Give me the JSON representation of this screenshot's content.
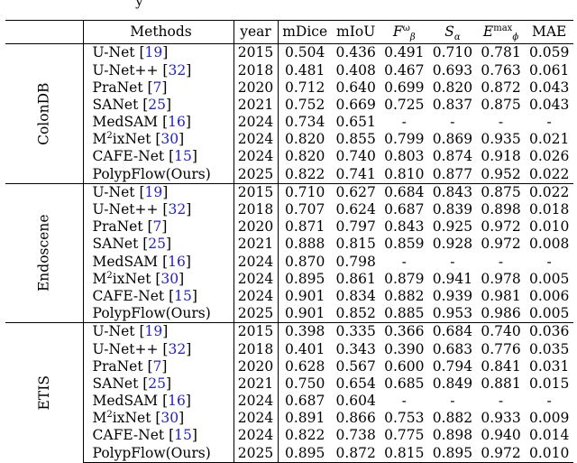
{
  "caption_fragment": "y",
  "headers": {
    "methods": "Methods",
    "year": "year",
    "mdice": "mDice",
    "miou": "mIoU",
    "fbeta": {
      "base": "F",
      "sup": "ω",
      "sub": "β"
    },
    "salpha": {
      "base": "S",
      "sub": "α"
    },
    "ephi": {
      "base": "E",
      "sup": "max",
      "sub": "ϕ"
    },
    "mae": "MAE"
  },
  "groups": [
    {
      "dataset": "ColonDB",
      "rows": [
        {
          "method": "U-Net",
          "cite": "19",
          "year": "2015",
          "mdice": "0.504",
          "miou": "0.436",
          "fbeta": "0.491",
          "salpha": "0.710",
          "ephi": "0.781",
          "mae": "0.059"
        },
        {
          "method": "U-Net++",
          "cite": "32",
          "year": "2018",
          "mdice": "0.481",
          "miou": "0.408",
          "fbeta": "0.467",
          "salpha": "0.693",
          "ephi": "0.763",
          "mae": "0.061"
        },
        {
          "method": "PraNet",
          "cite": "7",
          "year": "2020",
          "mdice": "0.712",
          "miou": "0.640",
          "fbeta": "0.699",
          "salpha": "0.820",
          "ephi": "0.872",
          "mae": "0.043"
        },
        {
          "method": "SANet",
          "cite": "25",
          "year": "2021",
          "mdice": "0.752",
          "miou": "0.669",
          "fbeta": "0.725",
          "salpha": "0.837",
          "ephi": "0.875",
          "mae": "0.043"
        },
        {
          "method": "MedSAM",
          "cite": "16",
          "year": "2024",
          "mdice": "0.734",
          "miou": "0.651",
          "fbeta": "-",
          "salpha": "-",
          "ephi": "-",
          "mae": "-"
        },
        {
          "method": "M",
          "method_sup": "2",
          "method_rest": "ixNet",
          "cite": "30",
          "year": "2024",
          "mdice": "0.820",
          "miou": "0.855",
          "fbeta": "0.799",
          "salpha": "0.869",
          "ephi": "0.935",
          "mae": "0.021",
          "bold": [
            "miou",
            "mae"
          ]
        },
        {
          "method": "CAFE-Net",
          "cite": "15",
          "year": "2024",
          "mdice": "0.820",
          "miou": "0.740",
          "fbeta": "0.803",
          "salpha": "0.874",
          "ephi": "0.918",
          "mae": "0.026"
        },
        {
          "method": "PolypFlow(Ours)",
          "year": "2025",
          "mdice": "0.822",
          "miou": "0.741",
          "fbeta": "0.810",
          "salpha": "0.877",
          "ephi": "0.952",
          "mae": "0.022",
          "ours": true,
          "bold": [
            "mdice",
            "fbeta",
            "salpha",
            "ephi"
          ]
        }
      ]
    },
    {
      "dataset": "Endoscene",
      "rows": [
        {
          "method": "U-Net",
          "cite": "19",
          "year": "2015",
          "mdice": "0.710",
          "miou": "0.627",
          "fbeta": "0.684",
          "salpha": "0.843",
          "ephi": "0.875",
          "mae": "0.022"
        },
        {
          "method": "U-Net++",
          "cite": "32",
          "year": "2018",
          "mdice": "0.707",
          "miou": "0.624",
          "fbeta": "0.687",
          "salpha": "0.839",
          "ephi": "0.898",
          "mae": "0.018"
        },
        {
          "method": "PraNet",
          "cite": "7",
          "year": "2020",
          "mdice": "0.871",
          "miou": "0.797",
          "fbeta": "0.843",
          "salpha": "0.925",
          "ephi": "0.972",
          "mae": "0.010"
        },
        {
          "method": "SANet",
          "cite": "25",
          "year": "2021",
          "mdice": "0.888",
          "miou": "0.815",
          "fbeta": "0.859",
          "salpha": "0.928",
          "ephi": "0.972",
          "mae": "0.008"
        },
        {
          "method": "MedSAM",
          "cite": "16",
          "year": "2024",
          "mdice": "0.870",
          "miou": "0.798",
          "fbeta": "-",
          "salpha": "-",
          "ephi": "-",
          "mae": "-"
        },
        {
          "method": "M",
          "method_sup": "2",
          "method_rest": "ixNet",
          "cite": "30",
          "year": "2024",
          "mdice": "0.895",
          "miou": "0.861",
          "fbeta": "0.879",
          "salpha": "0.941",
          "ephi": "0.978",
          "mae": "0.005",
          "bold": [
            "miou",
            "mae"
          ]
        },
        {
          "method": "CAFE-Net",
          "cite": "15",
          "year": "2024",
          "mdice": "0.901",
          "miou": "0.834",
          "fbeta": "0.882",
          "salpha": "0.939",
          "ephi": "0.981",
          "mae": "0.006",
          "bold": [
            "mdice"
          ]
        },
        {
          "method": "PolypFlow(Ours)",
          "year": "2025",
          "mdice": "0.901",
          "miou": "0.852",
          "fbeta": "0.885",
          "salpha": "0.953",
          "ephi": "0.986",
          "mae": "0.005",
          "ours": true,
          "bold": [
            "mdice",
            "fbeta",
            "salpha",
            "ephi",
            "mae"
          ]
        }
      ]
    },
    {
      "dataset": "ETIS",
      "rows": [
        {
          "method": "U-Net",
          "cite": "19",
          "year": "2015",
          "mdice": "0.398",
          "miou": "0.335",
          "fbeta": "0.366",
          "salpha": "0.684",
          "ephi": "0.740",
          "mae": "0.036"
        },
        {
          "method": "U-Net++",
          "cite": "32",
          "year": "2018",
          "mdice": "0.401",
          "miou": "0.343",
          "fbeta": "0.390",
          "salpha": "0.683",
          "ephi": "0.776",
          "mae": "0.035"
        },
        {
          "method": "PraNet",
          "cite": "7",
          "year": "2020",
          "mdice": "0.628",
          "miou": "0.567",
          "fbeta": "0.600",
          "salpha": "0.794",
          "ephi": "0.841",
          "mae": "0.031"
        },
        {
          "method": "SANet",
          "cite": "25",
          "year": "2021",
          "mdice": "0.750",
          "miou": "0.654",
          "fbeta": "0.685",
          "salpha": "0.849",
          "ephi": "0.881",
          "mae": "0.015"
        },
        {
          "method": "MedSAM",
          "cite": "16",
          "year": "2024",
          "mdice": "0.687",
          "miou": "0.604",
          "fbeta": "-",
          "salpha": "-",
          "ephi": "-",
          "mae": "-"
        },
        {
          "method": "M",
          "method_sup": "2",
          "method_rest": "ixNet",
          "cite": "30",
          "year": "2024",
          "mdice": "0.891",
          "miou": "0.866",
          "fbeta": "0.753",
          "salpha": "0.882",
          "ephi": "0.933",
          "mae": "0.009",
          "bold": [
            "mae"
          ]
        },
        {
          "method": "CAFE-Net",
          "cite": "15",
          "year": "2024",
          "mdice": "0.822",
          "miou": "0.738",
          "fbeta": "0.775",
          "salpha": "0.898",
          "ephi": "0.940",
          "mae": "0.014",
          "bold": [
            "salpha"
          ]
        },
        {
          "method": "PolypFlow(Ours)",
          "year": "2025",
          "mdice": "0.895",
          "miou": "0.872",
          "fbeta": "0.815",
          "salpha": "0.895",
          "ephi": "0.972",
          "mae": "0.010",
          "ours": true,
          "bold": [
            "mdice",
            "miou",
            "fbeta",
            "ephi"
          ]
        }
      ]
    }
  ]
}
